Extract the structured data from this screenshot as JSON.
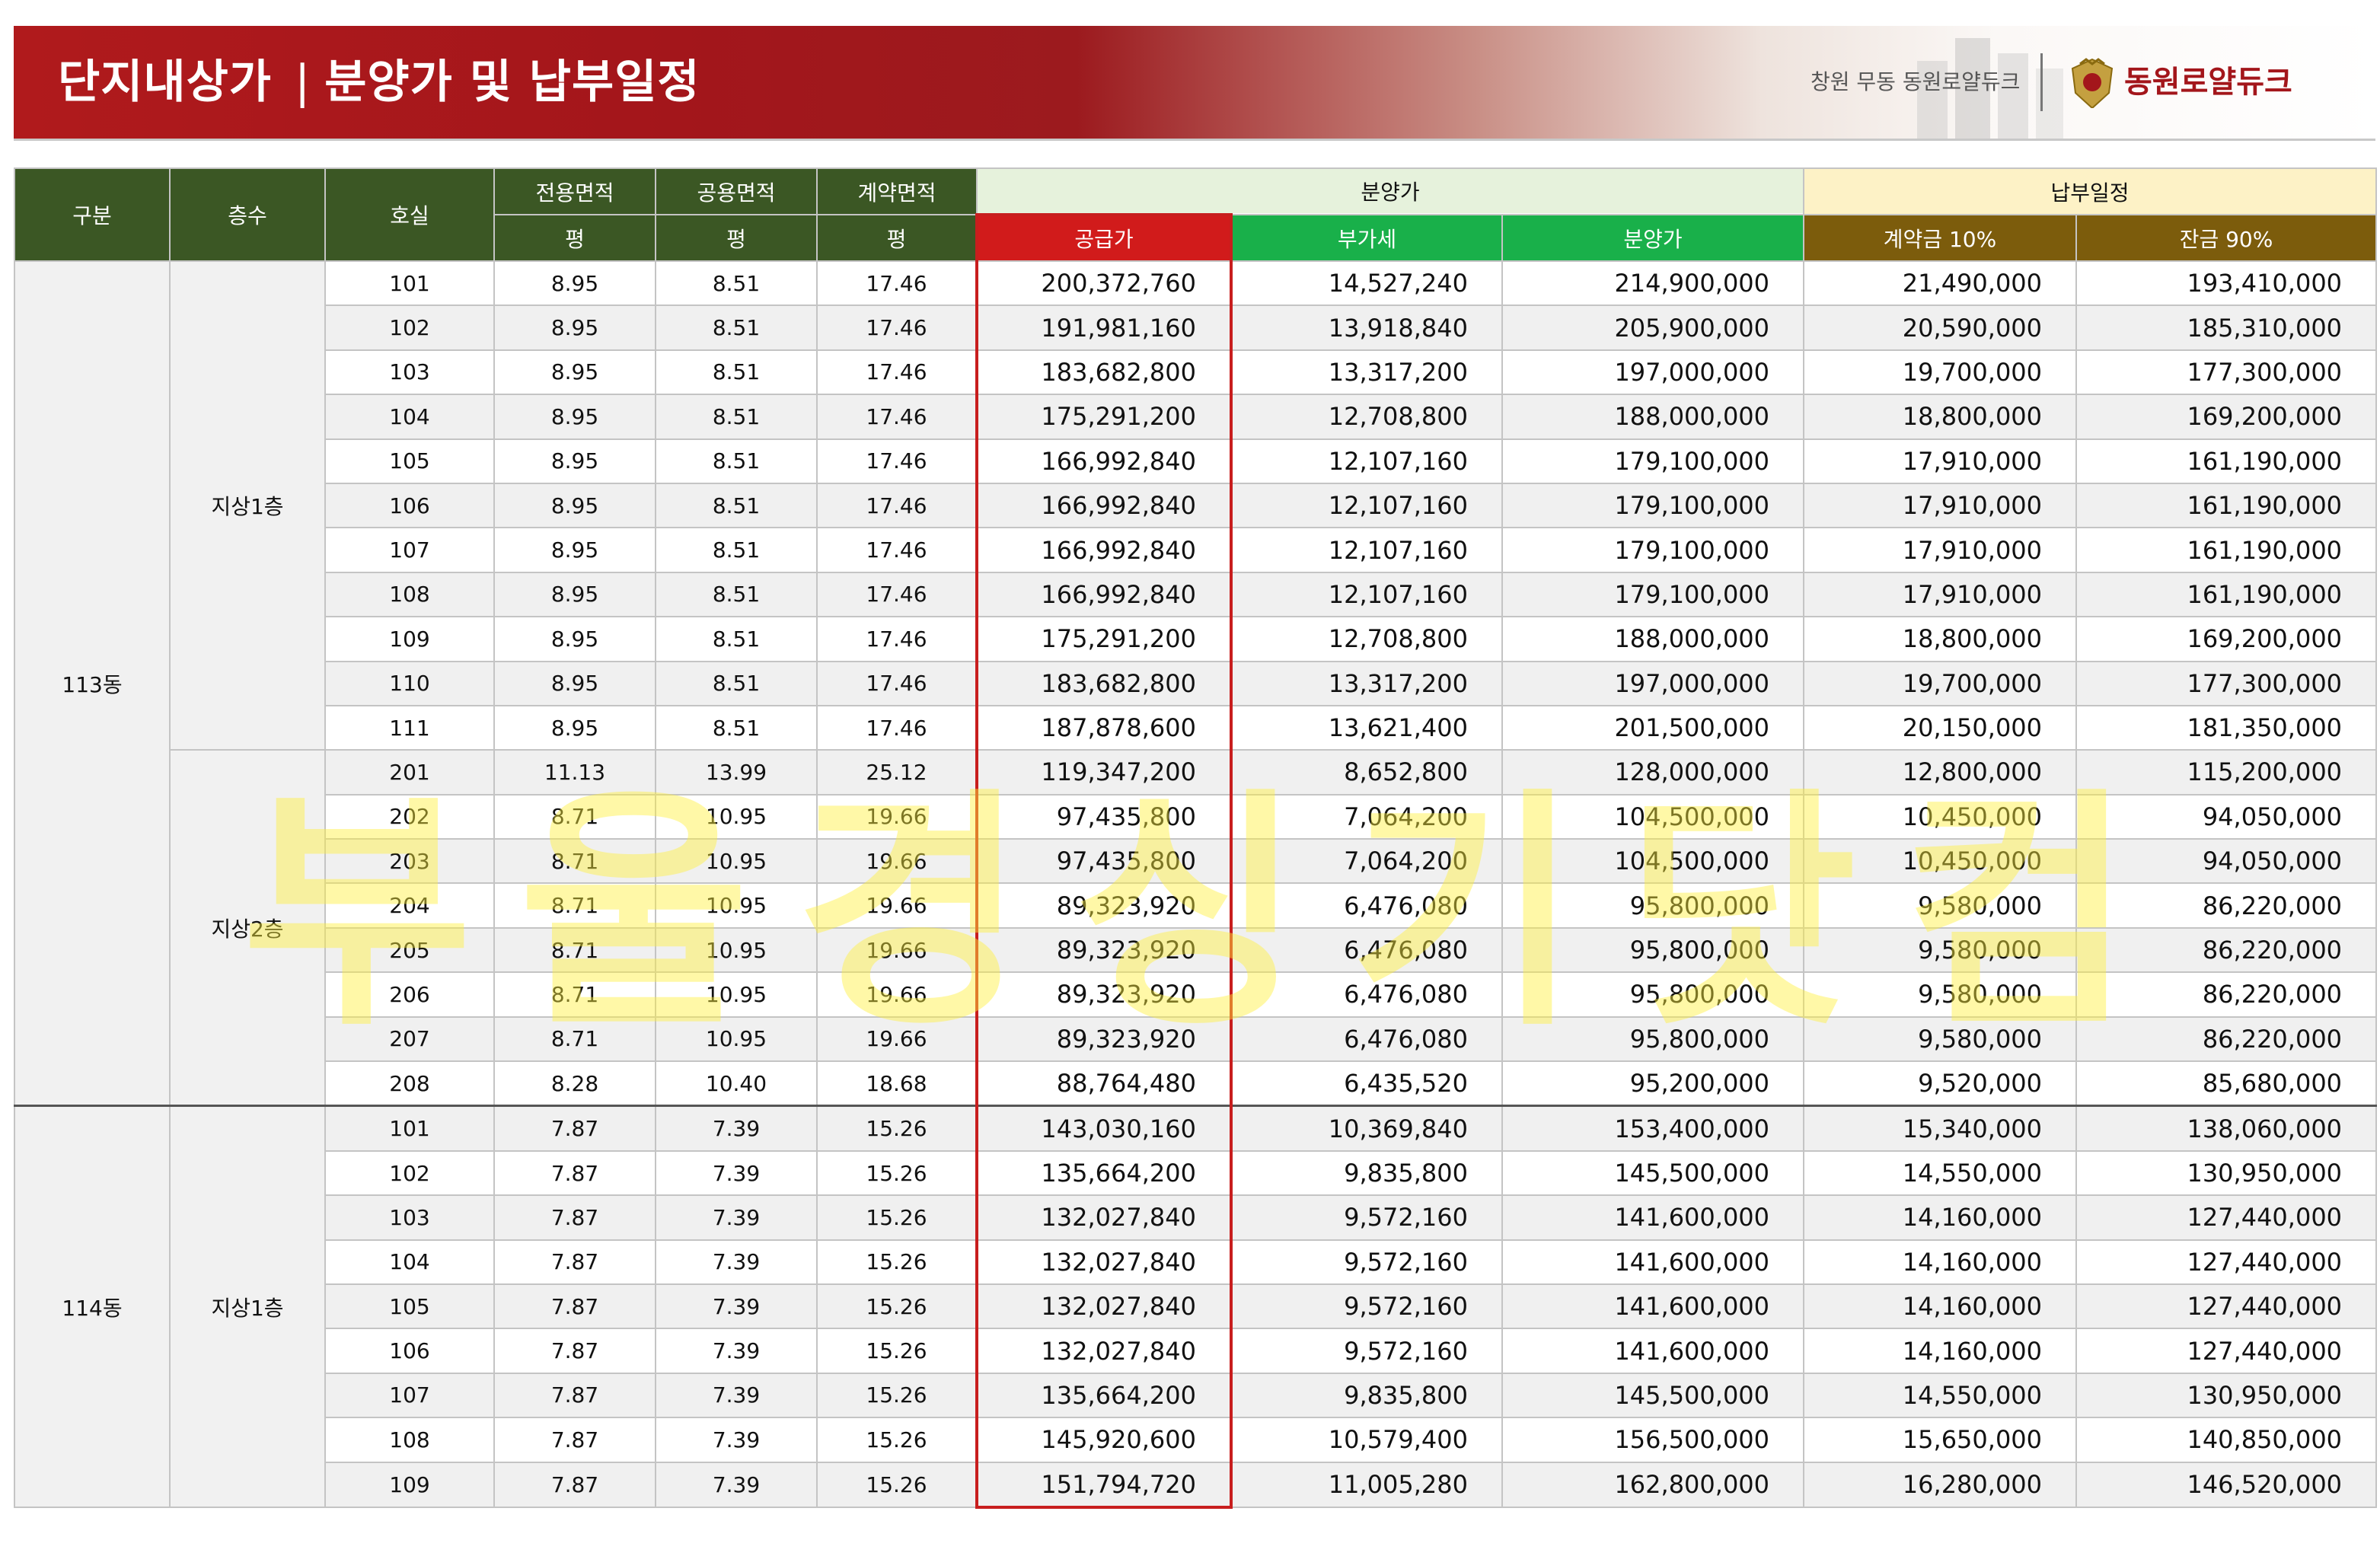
{
  "header": {
    "title": "단지내상가",
    "subtitle": "분양가 및 납부일정",
    "separator": "|",
    "site_name": "창원 무동 동원로얄듀크",
    "brand": "동원로얄듀크",
    "brand_color": "#a3161b"
  },
  "table": {
    "headers": {
      "group": "구분",
      "floor": "층수",
      "unit": "호실",
      "exclusive_area": "전용면적",
      "common_area": "공용면적",
      "contract_area": "계약면적",
      "pyeong": "평",
      "sale_price_group": "분양가",
      "supply_price": "공급가",
      "vat": "부가세",
      "sale_price": "분양가",
      "payment_group": "납부일정",
      "deposit": "계약금 10%",
      "balance": "잔금 90%"
    },
    "groups": [
      {
        "name": "113동",
        "floors": [
          {
            "name": "지상1층",
            "rows": [
              [
                "101",
                "8.95",
                "8.51",
                "17.46",
                "200,372,760",
                "14,527,240",
                "214,900,000",
                "21,490,000",
                "193,410,000"
              ],
              [
                "102",
                "8.95",
                "8.51",
                "17.46",
                "191,981,160",
                "13,918,840",
                "205,900,000",
                "20,590,000",
                "185,310,000"
              ],
              [
                "103",
                "8.95",
                "8.51",
                "17.46",
                "183,682,800",
                "13,317,200",
                "197,000,000",
                "19,700,000",
                "177,300,000"
              ],
              [
                "104",
                "8.95",
                "8.51",
                "17.46",
                "175,291,200",
                "12,708,800",
                "188,000,000",
                "18,800,000",
                "169,200,000"
              ],
              [
                "105",
                "8.95",
                "8.51",
                "17.46",
                "166,992,840",
                "12,107,160",
                "179,100,000",
                "17,910,000",
                "161,190,000"
              ],
              [
                "106",
                "8.95",
                "8.51",
                "17.46",
                "166,992,840",
                "12,107,160",
                "179,100,000",
                "17,910,000",
                "161,190,000"
              ],
              [
                "107",
                "8.95",
                "8.51",
                "17.46",
                "166,992,840",
                "12,107,160",
                "179,100,000",
                "17,910,000",
                "161,190,000"
              ],
              [
                "108",
                "8.95",
                "8.51",
                "17.46",
                "166,992,840",
                "12,107,160",
                "179,100,000",
                "17,910,000",
                "161,190,000"
              ],
              [
                "109",
                "8.95",
                "8.51",
                "17.46",
                "175,291,200",
                "12,708,800",
                "188,000,000",
                "18,800,000",
                "169,200,000"
              ],
              [
                "110",
                "8.95",
                "8.51",
                "17.46",
                "183,682,800",
                "13,317,200",
                "197,000,000",
                "19,700,000",
                "177,300,000"
              ],
              [
                "111",
                "8.95",
                "8.51",
                "17.46",
                "187,878,600",
                "13,621,400",
                "201,500,000",
                "20,150,000",
                "181,350,000"
              ]
            ]
          },
          {
            "name": "지상2층",
            "rows": [
              [
                "201",
                "11.13",
                "13.99",
                "25.12",
                "119,347,200",
                "8,652,800",
                "128,000,000",
                "12,800,000",
                "115,200,000"
              ],
              [
                "202",
                "8.71",
                "10.95",
                "19.66",
                "97,435,800",
                "7,064,200",
                "104,500,000",
                "10,450,000",
                "94,050,000"
              ],
              [
                "203",
                "8.71",
                "10.95",
                "19.66",
                "97,435,800",
                "7,064,200",
                "104,500,000",
                "10,450,000",
                "94,050,000"
              ],
              [
                "204",
                "8.71",
                "10.95",
                "19.66",
                "89,323,920",
                "6,476,080",
                "95,800,000",
                "9,580,000",
                "86,220,000"
              ],
              [
                "205",
                "8.71",
                "10.95",
                "19.66",
                "89,323,920",
                "6,476,080",
                "95,800,000",
                "9,580,000",
                "86,220,000"
              ],
              [
                "206",
                "8.71",
                "10.95",
                "19.66",
                "89,323,920",
                "6,476,080",
                "95,800,000",
                "9,580,000",
                "86,220,000"
              ],
              [
                "207",
                "8.71",
                "10.95",
                "19.66",
                "89,323,920",
                "6,476,080",
                "95,800,000",
                "9,580,000",
                "86,220,000"
              ],
              [
                "208",
                "8.28",
                "10.40",
                "18.68",
                "88,764,480",
                "6,435,520",
                "95,200,000",
                "9,520,000",
                "85,680,000"
              ]
            ]
          }
        ]
      },
      {
        "name": "114동",
        "floors": [
          {
            "name": "지상1층",
            "rows": [
              [
                "101",
                "7.87",
                "7.39",
                "15.26",
                "143,030,160",
                "10,369,840",
                "153,400,000",
                "15,340,000",
                "138,060,000"
              ],
              [
                "102",
                "7.87",
                "7.39",
                "15.26",
                "135,664,200",
                "9,835,800",
                "145,500,000",
                "14,550,000",
                "130,950,000"
              ],
              [
                "103",
                "7.87",
                "7.39",
                "15.26",
                "132,027,840",
                "9,572,160",
                "141,600,000",
                "14,160,000",
                "127,440,000"
              ],
              [
                "104",
                "7.87",
                "7.39",
                "15.26",
                "132,027,840",
                "9,572,160",
                "141,600,000",
                "14,160,000",
                "127,440,000"
              ],
              [
                "105",
                "7.87",
                "7.39",
                "15.26",
                "132,027,840",
                "9,572,160",
                "141,600,000",
                "14,160,000",
                "127,440,000"
              ],
              [
                "106",
                "7.87",
                "7.39",
                "15.26",
                "132,027,840",
                "9,572,160",
                "141,600,000",
                "14,160,000",
                "127,440,000"
              ],
              [
                "107",
                "7.87",
                "7.39",
                "15.26",
                "135,664,200",
                "9,835,800",
                "145,500,000",
                "14,550,000",
                "130,950,000"
              ],
              [
                "108",
                "7.87",
                "7.39",
                "15.26",
                "145,920,600",
                "10,579,400",
                "156,500,000",
                "15,650,000",
                "140,850,000"
              ],
              [
                "109",
                "7.87",
                "7.39",
                "15.26",
                "151,794,720",
                "11,005,280",
                "162,800,000",
                "16,280,000",
                "146,520,000"
              ]
            ]
          }
        ]
      }
    ]
  },
  "watermark": "부울경싱기닷컴",
  "colors": {
    "header_green": "#3b5724",
    "supply_red": "#d11b1b",
    "vat_green": "#19b04a",
    "payment_brown": "#7c5c0c"
  }
}
